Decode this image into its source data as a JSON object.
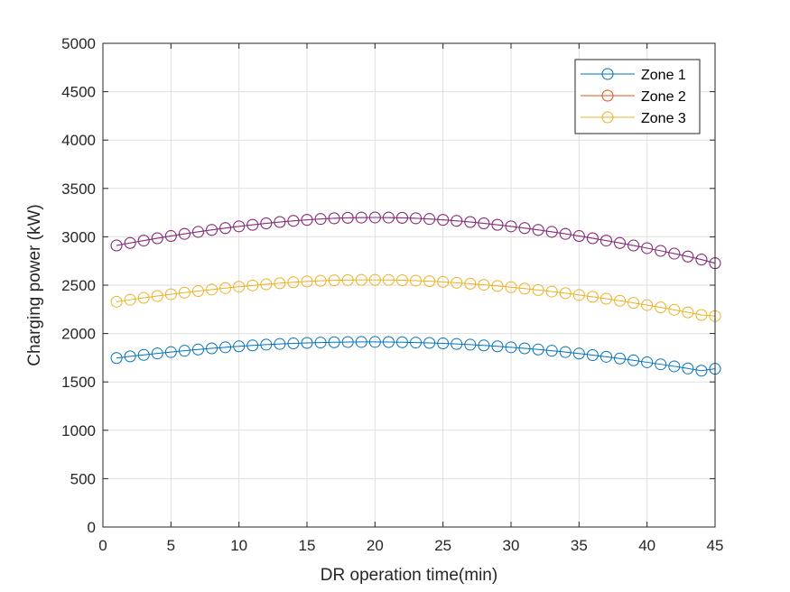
{
  "chart_data": {
    "type": "line",
    "title": "",
    "xlabel": "DR operation time(min)",
    "ylabel": "Charging power (kW)",
    "xlim": [
      0,
      45
    ],
    "ylim": [
      0,
      5000
    ],
    "xticks": [
      0,
      5,
      10,
      15,
      20,
      25,
      30,
      35,
      40,
      45
    ],
    "yticks": [
      0,
      500,
      1000,
      1500,
      2000,
      2500,
      3000,
      3500,
      4000,
      4500,
      5000
    ],
    "grid": true,
    "legend_position": "top-right",
    "marker": "circle",
    "x": [
      1,
      2,
      3,
      4,
      5,
      6,
      7,
      8,
      9,
      10,
      11,
      12,
      13,
      14,
      15,
      16,
      17,
      18,
      19,
      20,
      21,
      22,
      23,
      24,
      25,
      26,
      27,
      28,
      29,
      30,
      31,
      32,
      33,
      34,
      35,
      36,
      37,
      38,
      39,
      40,
      41,
      42,
      43,
      44,
      45
    ],
    "series": [
      {
        "name": "Zone 1",
        "color": "#0072BD",
        "values": [
          1747,
          1764,
          1779,
          1794,
          1808,
          1822,
          1835,
          1847,
          1858,
          1868,
          1877,
          1885,
          1892,
          1898,
          1903,
          1907,
          1910,
          1912,
          1913,
          1913,
          1912,
          1910,
          1907,
          1903,
          1898,
          1892,
          1885,
          1877,
          1868,
          1858,
          1847,
          1835,
          1822,
          1808,
          1793,
          1777,
          1760,
          1742,
          1723,
          1703,
          1682,
          1661,
          1639,
          1616,
          1636
        ]
      },
      {
        "name": "Zone 2",
        "color": "#D95319",
        "values": [
          2910,
          2936,
          2961,
          2985,
          3008,
          3030,
          3051,
          3071,
          3090,
          3108,
          3124,
          3139,
          3153,
          3165,
          3175,
          3184,
          3191,
          3196,
          3199,
          3200,
          3199,
          3196,
          3191,
          3184,
          3175,
          3165,
          3153,
          3139,
          3124,
          3108,
          3090,
          3071,
          3051,
          3030,
          3008,
          2985,
          2961,
          2936,
          2910,
          2883,
          2855,
          2826,
          2796,
          2765,
          2727
        ]
      },
      {
        "name": "Zone 3",
        "color": "#EDB120",
        "values": [
          2329,
          2349,
          2369,
          2388,
          2406,
          2423,
          2439,
          2455,
          2470,
          2484,
          2497,
          2509,
          2520,
          2530,
          2538,
          2545,
          2550,
          2553,
          2555,
          2555,
          2554,
          2551,
          2547,
          2541,
          2534,
          2525,
          2515,
          2504,
          2492,
          2479,
          2465,
          2450,
          2434,
          2417,
          2399,
          2380,
          2360,
          2339,
          2317,
          2294,
          2270,
          2245,
          2219,
          2192,
          2181
        ]
      }
    ],
    "overlay_series": {
      "color": "#7E2F8E",
      "values": [
        2910,
        2936,
        2961,
        2985,
        3008,
        3030,
        3051,
        3071,
        3090,
        3108,
        3124,
        3139,
        3153,
        3165,
        3175,
        3184,
        3191,
        3196,
        3199,
        3200,
        3199,
        3196,
        3191,
        3184,
        3175,
        3165,
        3153,
        3139,
        3124,
        3108,
        3090,
        3071,
        3051,
        3030,
        3008,
        2985,
        2961,
        2936,
        2910,
        2883,
        2855,
        2826,
        2796,
        2765,
        2727
      ]
    }
  }
}
